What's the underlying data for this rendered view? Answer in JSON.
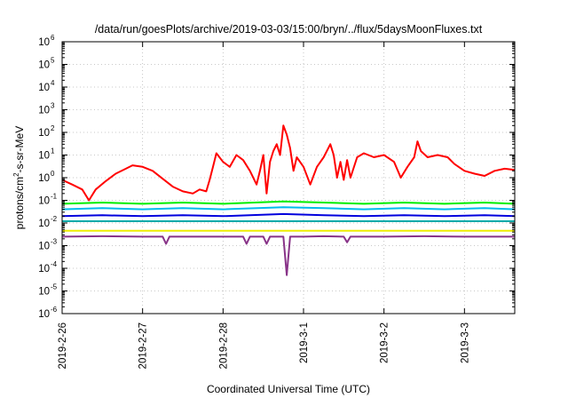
{
  "chart_data": {
    "type": "line",
    "title": "/data/run/goesPlots/archive/2019-03-03/15:00/bryn/../flux/5daysMoonFluxes.txt",
    "xlabel": "Coordinated Universal Time (UTC)",
    "ylabel": "protons/cm2-s-sr-MeV",
    "ylabel_parts": {
      "pre": "protons/cm",
      "sup": "2",
      "post": "-s-sr-MeV"
    },
    "y_scale": "log",
    "ylim": [
      1e-06,
      1000000.0
    ],
    "y_ticks": [
      {
        "mant": "10",
        "exp": "-6"
      },
      {
        "mant": "10",
        "exp": "-5"
      },
      {
        "mant": "10",
        "exp": "-4"
      },
      {
        "mant": "10",
        "exp": "-3"
      },
      {
        "mant": "10",
        "exp": "-2"
      },
      {
        "mant": "10",
        "exp": "-1"
      },
      {
        "mant": "10",
        "exp": "0"
      },
      {
        "mant": "10",
        "exp": "1"
      },
      {
        "mant": "10",
        "exp": "2"
      },
      {
        "mant": "10",
        "exp": "3"
      },
      {
        "mant": "10",
        "exp": "4"
      },
      {
        "mant": "10",
        "exp": "5"
      },
      {
        "mant": "10",
        "exp": "6"
      }
    ],
    "xlim": [
      "2019-02-26T00:00",
      "2019-03-03T15:00"
    ],
    "x_ticks": [
      "2019-2-26",
      "2019-2-27",
      "2019-2-28",
      "2019-3-1",
      "2019-3-2",
      "2019-3-3"
    ],
    "grid": true,
    "series": [
      {
        "color": "#ff0000",
        "points": [
          [
            "2019-02-26T00:00",
            0.8
          ],
          [
            "2019-02-26T03:00",
            0.5
          ],
          [
            "2019-02-26T06:00",
            0.3
          ],
          [
            "2019-02-26T08:00",
            0.1
          ],
          [
            "2019-02-26T10:00",
            0.3
          ],
          [
            "2019-02-26T13:00",
            0.7
          ],
          [
            "2019-02-26T16:00",
            1.5
          ],
          [
            "2019-02-26T19:00",
            2.5
          ],
          [
            "2019-02-26T21:00",
            3.5
          ],
          [
            "2019-02-27T00:00",
            3.0
          ],
          [
            "2019-02-27T03:00",
            2.0
          ],
          [
            "2019-02-27T06:00",
            0.9
          ],
          [
            "2019-02-27T09:00",
            0.4
          ],
          [
            "2019-02-27T12:00",
            0.25
          ],
          [
            "2019-02-27T15:00",
            0.2
          ],
          [
            "2019-02-27T17:00",
            0.3
          ],
          [
            "2019-02-27T19:00",
            0.25
          ],
          [
            "2019-02-27T20:00",
            0.8
          ],
          [
            "2019-02-27T21:00",
            3.0
          ],
          [
            "2019-02-27T22:00",
            12
          ],
          [
            "2019-02-28T00:00",
            5
          ],
          [
            "2019-02-28T02:00",
            3
          ],
          [
            "2019-02-28T04:00",
            10
          ],
          [
            "2019-02-28T06:00",
            6
          ],
          [
            "2019-02-28T08:00",
            2
          ],
          [
            "2019-02-28T10:00",
            0.5
          ],
          [
            "2019-02-28T11:00",
            2
          ],
          [
            "2019-02-28T12:00",
            10
          ],
          [
            "2019-02-28T13:00",
            0.2
          ],
          [
            "2019-02-28T14:00",
            5
          ],
          [
            "2019-02-28T15:00",
            15
          ],
          [
            "2019-02-28T16:00",
            30
          ],
          [
            "2019-02-28T17:00",
            10
          ],
          [
            "2019-02-28T18:00",
            200
          ],
          [
            "2019-02-28T19:00",
            80
          ],
          [
            "2019-02-28T20:00",
            20
          ],
          [
            "2019-02-28T21:00",
            2
          ],
          [
            "2019-02-28T22:00",
            8
          ],
          [
            "2019-03-01T00:00",
            3
          ],
          [
            "2019-03-01T02:00",
            0.5
          ],
          [
            "2019-03-01T04:00",
            3
          ],
          [
            "2019-03-01T06:00",
            8
          ],
          [
            "2019-03-01T08:00",
            30
          ],
          [
            "2019-03-01T09:00",
            10
          ],
          [
            "2019-03-01T10:00",
            1
          ],
          [
            "2019-03-01T11:00",
            5
          ],
          [
            "2019-03-01T12:00",
            0.8
          ],
          [
            "2019-03-01T13:00",
            6
          ],
          [
            "2019-03-01T14:00",
            1
          ],
          [
            "2019-03-01T16:00",
            8
          ],
          [
            "2019-03-01T18:00",
            12
          ],
          [
            "2019-03-01T21:00",
            8
          ],
          [
            "2019-03-02T00:00",
            10
          ],
          [
            "2019-03-02T03:00",
            5
          ],
          [
            "2019-03-02T05:00",
            1
          ],
          [
            "2019-03-02T07:00",
            3
          ],
          [
            "2019-03-02T09:00",
            8
          ],
          [
            "2019-03-02T10:00",
            40
          ],
          [
            "2019-03-02T11:00",
            15
          ],
          [
            "2019-03-02T13:00",
            8
          ],
          [
            "2019-03-02T16:00",
            10
          ],
          [
            "2019-03-02T19:00",
            8
          ],
          [
            "2019-03-02T21:00",
            4
          ],
          [
            "2019-03-03T00:00",
            2
          ],
          [
            "2019-03-03T03:00",
            1.5
          ],
          [
            "2019-03-03T06:00",
            1.2
          ],
          [
            "2019-03-03T09:00",
            2
          ],
          [
            "2019-03-03T12:00",
            2.5
          ],
          [
            "2019-03-03T15:00",
            2.2
          ]
        ]
      },
      {
        "color": "#00ee00",
        "points": [
          [
            "2019-02-26T00:00",
            0.07
          ],
          [
            "2019-02-26T12:00",
            0.08
          ],
          [
            "2019-02-27T00:00",
            0.07
          ],
          [
            "2019-02-27T12:00",
            0.08
          ],
          [
            "2019-02-28T00:00",
            0.07
          ],
          [
            "2019-02-28T18:00",
            0.09
          ],
          [
            "2019-03-01T06:00",
            0.08
          ],
          [
            "2019-03-01T18:00",
            0.07
          ],
          [
            "2019-03-02T06:00",
            0.08
          ],
          [
            "2019-03-02T18:00",
            0.07
          ],
          [
            "2019-03-03T06:00",
            0.08
          ],
          [
            "2019-03-03T15:00",
            0.07
          ]
        ]
      },
      {
        "color": "#00bbee",
        "points": [
          [
            "2019-02-26T00:00",
            0.04
          ],
          [
            "2019-02-26T12:00",
            0.045
          ],
          [
            "2019-02-27T00:00",
            0.04
          ],
          [
            "2019-02-27T12:00",
            0.045
          ],
          [
            "2019-02-28T00:00",
            0.04
          ],
          [
            "2019-02-28T18:00",
            0.05
          ],
          [
            "2019-03-01T06:00",
            0.045
          ],
          [
            "2019-03-01T18:00",
            0.04
          ],
          [
            "2019-03-02T06:00",
            0.045
          ],
          [
            "2019-03-02T18:00",
            0.04
          ],
          [
            "2019-03-03T06:00",
            0.045
          ],
          [
            "2019-03-03T15:00",
            0.04
          ]
        ]
      },
      {
        "color": "#0000dd",
        "points": [
          [
            "2019-02-26T00:00",
            0.02
          ],
          [
            "2019-02-26T12:00",
            0.022
          ],
          [
            "2019-02-27T00:00",
            0.02
          ],
          [
            "2019-02-27T12:00",
            0.022
          ],
          [
            "2019-02-28T00:00",
            0.02
          ],
          [
            "2019-02-28T18:00",
            0.025
          ],
          [
            "2019-03-01T06:00",
            0.022
          ],
          [
            "2019-03-01T18:00",
            0.02
          ],
          [
            "2019-03-02T06:00",
            0.022
          ],
          [
            "2019-03-02T18:00",
            0.02
          ],
          [
            "2019-03-03T06:00",
            0.022
          ],
          [
            "2019-03-03T15:00",
            0.02
          ]
        ]
      },
      {
        "color": "#00aaaa",
        "points": [
          [
            "2019-02-26T00:00",
            0.012
          ],
          [
            "2019-02-27T00:00",
            0.012
          ],
          [
            "2019-02-28T00:00",
            0.012
          ],
          [
            "2019-03-01T00:00",
            0.012
          ],
          [
            "2019-03-02T00:00",
            0.012
          ],
          [
            "2019-03-03T00:00",
            0.012
          ],
          [
            "2019-03-03T15:00",
            0.012
          ]
        ]
      },
      {
        "color": "#eeee00",
        "points": [
          [
            "2019-02-26T00:00",
            0.0045
          ],
          [
            "2019-02-27T00:00",
            0.0045
          ],
          [
            "2019-02-28T00:00",
            0.0045
          ],
          [
            "2019-03-01T00:00",
            0.0045
          ],
          [
            "2019-03-02T00:00",
            0.0045
          ],
          [
            "2019-03-03T00:00",
            0.0045
          ],
          [
            "2019-03-03T15:00",
            0.0045
          ]
        ]
      },
      {
        "color": "#883388",
        "points": [
          [
            "2019-02-26T00:00",
            0.0025
          ],
          [
            "2019-02-26T12:00",
            0.0026
          ],
          [
            "2019-02-27T00:00",
            0.0025
          ],
          [
            "2019-02-27T06:00",
            0.0025
          ],
          [
            "2019-02-27T07:00",
            0.0012
          ],
          [
            "2019-02-27T08:00",
            0.0025
          ],
          [
            "2019-02-28T00:00",
            0.0025
          ],
          [
            "2019-02-28T06:00",
            0.0025
          ],
          [
            "2019-02-28T07:00",
            0.0012
          ],
          [
            "2019-02-28T08:00",
            0.0025
          ],
          [
            "2019-02-28T12:00",
            0.0025
          ],
          [
            "2019-02-28T13:00",
            0.0012
          ],
          [
            "2019-02-28T14:00",
            0.0025
          ],
          [
            "2019-02-28T18:00",
            0.0025
          ],
          [
            "2019-02-28T19:00",
            5e-05
          ],
          [
            "2019-02-28T20:00",
            0.0025
          ],
          [
            "2019-03-01T00:00",
            0.0025
          ],
          [
            "2019-03-01T06:00",
            0.0026
          ],
          [
            "2019-03-01T12:00",
            0.0025
          ],
          [
            "2019-03-01T13:00",
            0.0014
          ],
          [
            "2019-03-01T14:00",
            0.0025
          ],
          [
            "2019-03-02T00:00",
            0.0025
          ],
          [
            "2019-03-02T12:00",
            0.0026
          ],
          [
            "2019-03-03T00:00",
            0.0025
          ],
          [
            "2019-03-03T15:00",
            0.0025
          ]
        ]
      }
    ]
  }
}
